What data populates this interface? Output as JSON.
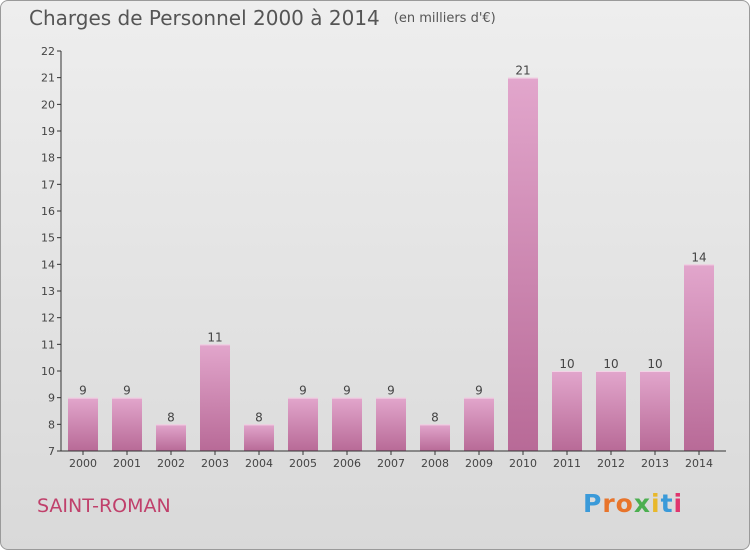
{
  "title": "Charges de Personnel 2000 à 2014",
  "subtitle": "(en milliers d'€)",
  "place": "SAINT-ROMAN",
  "logo": {
    "letters": [
      "P",
      "r",
      "o",
      "x",
      "i",
      "t",
      "i"
    ],
    "colors": [
      "#3a9ad9",
      "#e8742b",
      "#e8742b",
      "#4caf50",
      "#e8b82b",
      "#3a9ad9",
      "#e0356e"
    ]
  },
  "colors": {
    "bar_top": "#e2a6cc",
    "bar_bottom": "#b86a97",
    "axis": "#333333",
    "grid": "#c8c8c8"
  },
  "chart_data": {
    "type": "bar",
    "categories": [
      "2000",
      "2001",
      "2002",
      "2003",
      "2004",
      "2005",
      "2006",
      "2007",
      "2008",
      "2009",
      "2010",
      "2011",
      "2012",
      "2013",
      "2014"
    ],
    "values": [
      9,
      9,
      8,
      11,
      8,
      9,
      9,
      9,
      8,
      9,
      21,
      10,
      10,
      10,
      14
    ],
    "title": "Charges de Personnel 2000 à 2014",
    "ylim": [
      7,
      22
    ],
    "y_ticks": [
      7,
      8,
      9,
      10,
      11,
      12,
      13,
      14,
      15,
      16,
      17,
      18,
      19,
      20,
      21,
      22
    ],
    "grid": false,
    "data_labels": true
  }
}
